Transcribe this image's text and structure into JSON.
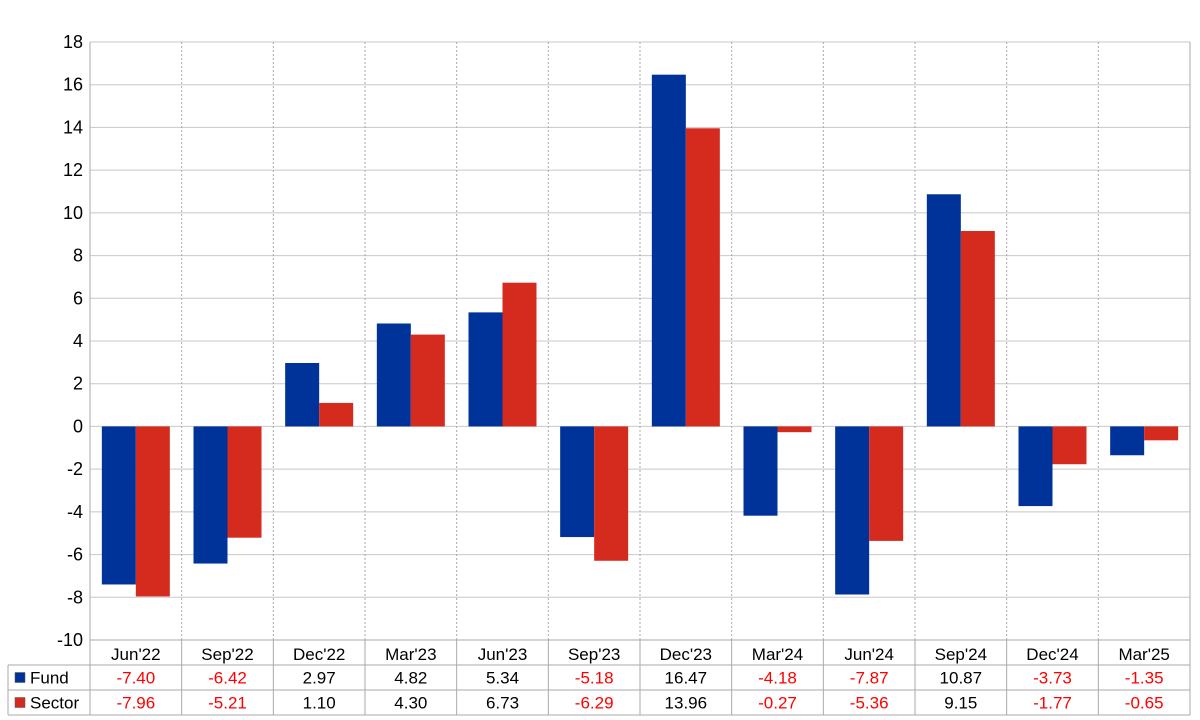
{
  "chart_data": {
    "type": "bar",
    "title": "",
    "xlabel": "",
    "ylabel": "",
    "categories": [
      "Jun'22",
      "Sep'22",
      "Dec'22",
      "Mar'23",
      "Jun'23",
      "Sep'23",
      "Dec'23",
      "Mar'24",
      "Jun'24",
      "Sep'24",
      "Dec'24",
      "Mar'25"
    ],
    "ylim": [
      -10,
      18
    ],
    "yticks": [
      "18",
      "16",
      "14",
      "12",
      "10",
      "8",
      "6",
      "4",
      "2",
      "0",
      "-2",
      "-4",
      "-6",
      "-8",
      "-10"
    ],
    "grid": true,
    "legend": "table-below",
    "series": [
      {
        "name": "Fund",
        "color": "#003399",
        "values": [
          -7.4,
          -6.42,
          2.97,
          4.82,
          5.34,
          -5.18,
          16.47,
          -4.18,
          -7.87,
          10.87,
          -3.73,
          -1.35
        ],
        "labels": [
          "-7.40",
          "-6.42",
          "2.97",
          "4.82",
          "5.34",
          "-5.18",
          "16.47",
          "-4.18",
          "-7.87",
          "10.87",
          "-3.73",
          "-1.35"
        ]
      },
      {
        "name": "Sector",
        "color": "#d52b1e",
        "values": [
          -7.96,
          -5.21,
          1.1,
          4.3,
          6.73,
          -6.29,
          13.96,
          -0.27,
          -5.36,
          9.15,
          -1.77,
          -0.65
        ],
        "labels": [
          "-7.96",
          "-5.21",
          "1.10",
          "4.30",
          "6.73",
          "-6.29",
          "13.96",
          "-0.27",
          "-5.36",
          "9.15",
          "-1.77",
          "-0.65"
        ]
      }
    ],
    "negative_color": "#ff0000"
  }
}
